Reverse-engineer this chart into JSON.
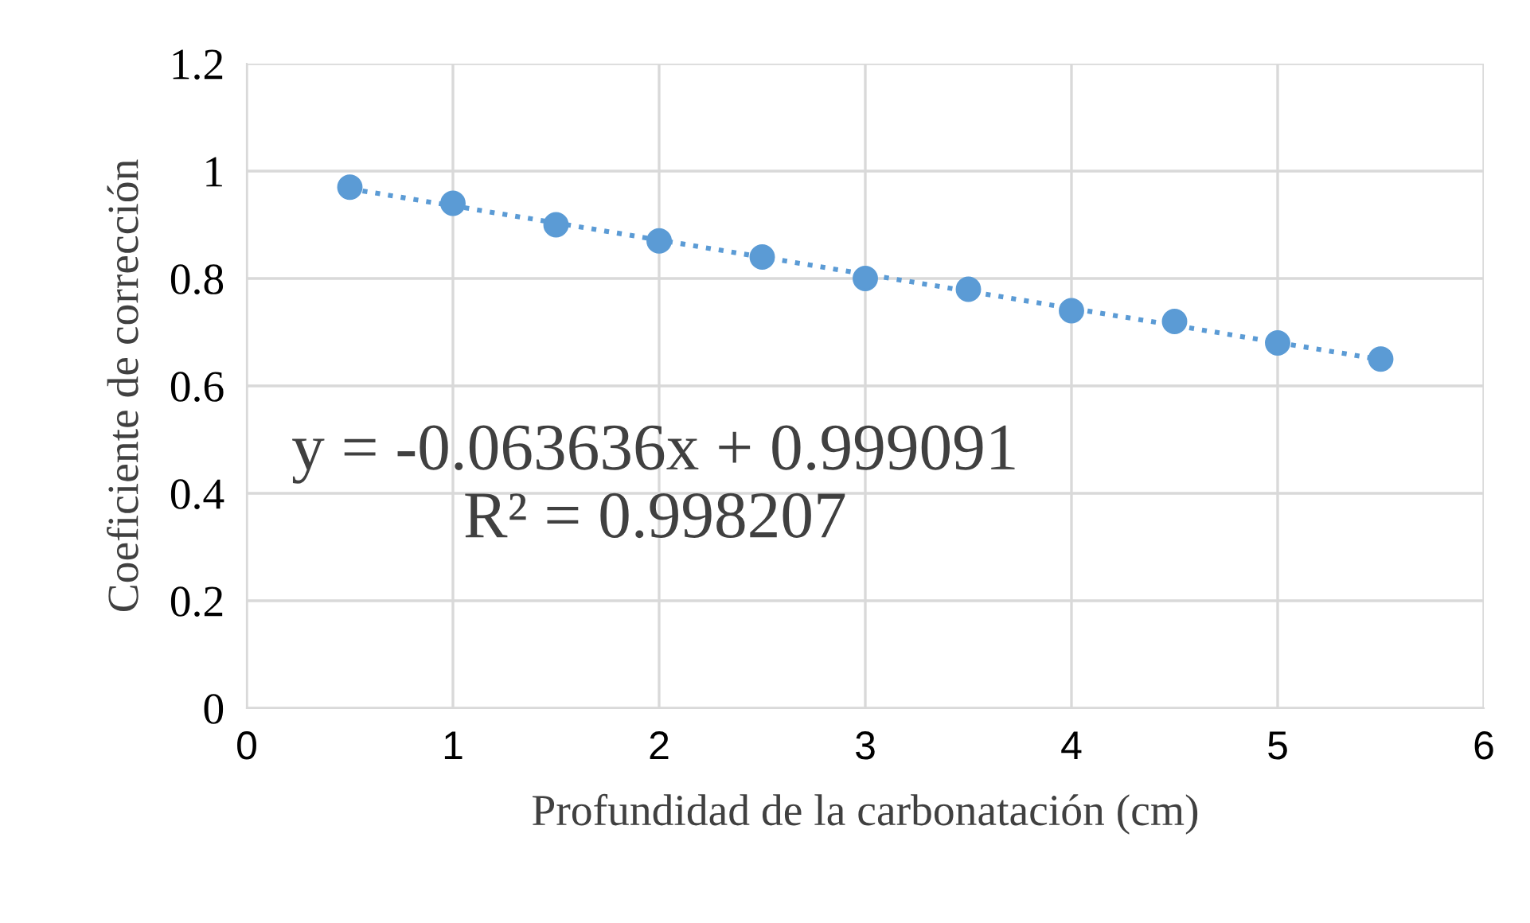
{
  "chart_data": {
    "type": "scatter",
    "xlabel": "Profundidad de la carbonatación (cm)",
    "ylabel": "Coeficiente de corrección",
    "x": [
      0.5,
      1,
      1.5,
      2,
      2.5,
      3,
      3.5,
      4,
      4.5,
      5,
      5.5
    ],
    "series": [
      {
        "color": "#5b9bd5",
        "marker": "circle",
        "values": [
          0.97,
          0.94,
          0.9,
          0.87,
          0.84,
          0.8,
          0.78,
          0.74,
          0.72,
          0.68,
          0.65
        ]
      },
      {
        "type": "line",
        "color": "#5b9bd5",
        "marker": "none",
        "line_style": "dotted",
        "x": [
          0.5,
          5.5
        ],
        "values": [
          0.967,
          0.649
        ]
      }
    ],
    "xlim": [
      0,
      6
    ],
    "xticks": [
      0,
      1,
      2,
      3,
      4,
      5,
      6
    ],
    "ylim": [
      0,
      1.2
    ],
    "yticks": [
      0,
      0.2,
      0.4,
      0.6,
      0.8,
      1,
      1.2
    ],
    "grid": true,
    "annotations": [
      "y = -0.063636x + 0.999091",
      "R² = 0.998207"
    ]
  }
}
